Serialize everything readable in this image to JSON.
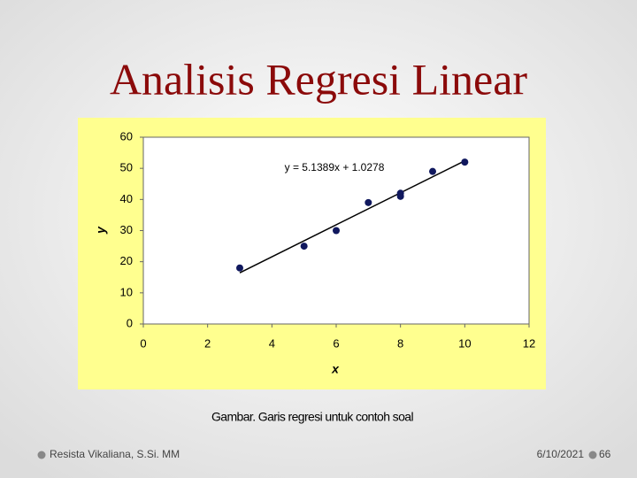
{
  "slide_title": "Analisis Regresi Linear",
  "chart_data": {
    "type": "scatter",
    "x": [
      3,
      5,
      6,
      7,
      8,
      8,
      9,
      10
    ],
    "series": [
      {
        "color": "#10185e",
        "values": [
          18,
          25,
          30,
          39,
          41,
          42,
          49,
          52
        ]
      }
    ],
    "regression": {
      "label": "y = 5.1389x + 1.0278",
      "slope": 5.1389,
      "intercept": 1.0278
    },
    "xlabel": "x",
    "ylabel": "y",
    "xlim": [
      0,
      12
    ],
    "xticks": [
      0,
      2,
      4,
      6,
      8,
      10,
      12
    ],
    "ylim": [
      0,
      60
    ],
    "yticks": [
      0,
      10,
      20,
      30,
      40,
      50,
      60
    ]
  },
  "caption": "Gambar. Garis regresi untuk contoh soal",
  "footer": {
    "author": "Resista Vikaliana, S.Si. MM",
    "date": "6/10/2021",
    "page": "66"
  }
}
